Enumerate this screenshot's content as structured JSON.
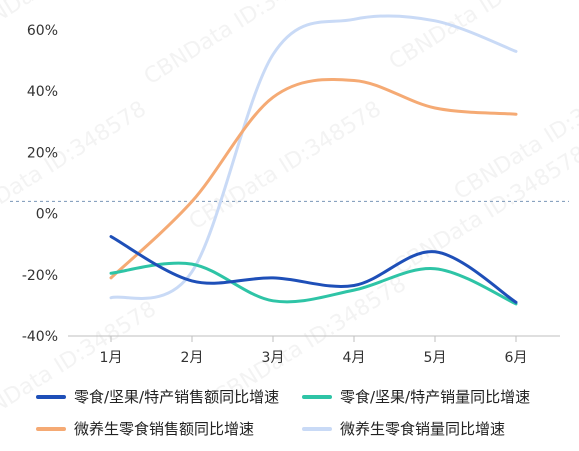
{
  "chart_data": {
    "type": "line",
    "categories": [
      "1月",
      "2月",
      "3月",
      "4月",
      "5月",
      "6月"
    ],
    "y_tick_labels": [
      "60%",
      "40%",
      "20%",
      "0%",
      "-20%",
      "-40%"
    ],
    "y_ticks": [
      60,
      40,
      20,
      0,
      -20,
      -40
    ],
    "ylim": [
      -40,
      60
    ],
    "reference_line": 4,
    "grid": false,
    "legend_position": "bottom",
    "series": [
      {
        "name": "零食/坚果/特产销售额同比增速",
        "color": "#1e4fb8",
        "values": [
          -7.5,
          -22,
          -21,
          -23.5,
          -12.5,
          -29
        ]
      },
      {
        "name": "零食/坚果/特产销量同比增速",
        "color": "#2ec4a6",
        "values": [
          -19.5,
          -16.5,
          -28.5,
          -25,
          -18,
          -29.5
        ]
      },
      {
        "name": "微养生零食销售额同比增速",
        "color": "#f5aa74",
        "values": [
          -21,
          4,
          38,
          43.5,
          34.5,
          32.5
        ]
      },
      {
        "name": "微养生零食销量同比增速",
        "color": "#c9daf6",
        "values": [
          -27.5,
          -19,
          52,
          63.5,
          63,
          53
        ]
      }
    ]
  },
  "watermark": "CBNData ID:348578"
}
